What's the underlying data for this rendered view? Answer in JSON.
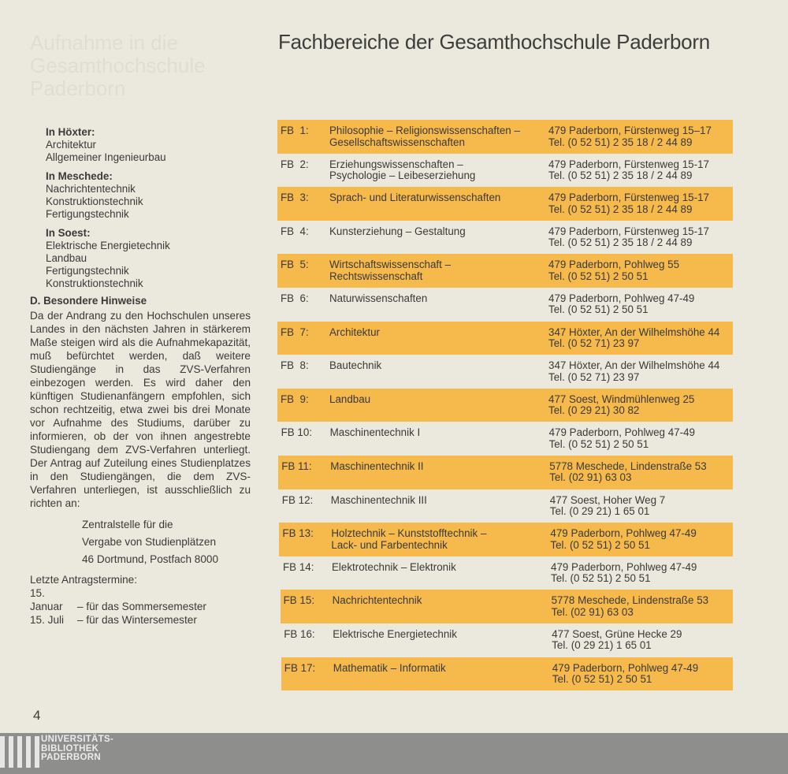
{
  "ghost_text": "Aufnahme in die Gesamthochschule Paderborn",
  "title": "Fachbereiche der Gesamthochschule Paderborn",
  "left": {
    "groups": [
      {
        "heading": "In Höxter:",
        "items": [
          "Architektur",
          "Allgemeiner Ingenieurbau"
        ]
      },
      {
        "heading": "In Meschede:",
        "items": [
          "Nachrichtentechnik",
          "Konstruktionstechnik",
          "Fertigungstechnik"
        ]
      },
      {
        "heading": "In Soest:",
        "items": [
          "Elektrische Energietechnik",
          "Landbau",
          "Fertigungstechnik",
          "Konstruktionstechnik"
        ]
      }
    ],
    "section_heading": "D. Besondere Hinweise",
    "paragraph": "Da der Andrang zu den Hochschulen unseres Landes in den nächsten Jahren in stärkerem Maße steigen wird als die Aufnahmekapazität, muß befürchtet werden, daß weitere Studiengänge in das ZVS-Verfahren einbezogen werden. Es wird daher den künftigen Studienanfängern empfohlen, sich schon rechtzeitig, etwa zwei bis drei Monate vor Aufnahme des Studiums, darüber zu informieren, ob der von ihnen angestrebte Studiengang dem ZVS-Verfahren unterliegt. Der Antrag auf Zuteilung eines Studienplatzes in den Studiengängen, die dem ZVS-Verfahren unterliegen, ist ausschließlich zu richten an:",
    "address": [
      "Zentralstelle für die",
      "Vergabe von Studienplätzen",
      "46 Dortmund, Postfach 8000"
    ],
    "deadlines_heading": "Letzte Antragstermine:",
    "deadlines": [
      {
        "date": "15. Januar",
        "text": "– für das Sommersemester"
      },
      {
        "date": "15. Juli",
        "text": "– für das Wintersemester"
      }
    ]
  },
  "highlight_color": "#f6b94b",
  "rows": [
    {
      "fb": "FB  1:",
      "name": [
        "Philosophie – Religionswissenschaften –",
        "Gesellschaftswissenschaften"
      ],
      "addr": [
        "479 Paderborn, Fürstenweg 15–17",
        "Tel. (0 52 51) 2 35 18 / 2 44 89"
      ]
    },
    {
      "fb": "FB  2:",
      "name": [
        "Erziehungswissenschaften –",
        "Psychologie – Leibeserziehung"
      ],
      "addr": [
        "479 Paderborn, Fürstenweg 15-17",
        "Tel. (0 52 51) 2 35 18 / 2 44 89"
      ]
    },
    {
      "fb": "FB  3:",
      "name": [
        "Sprach- und Literaturwissenschaften",
        ""
      ],
      "addr": [
        "479 Paderborn, Fürstenweg 15-17",
        "Tel. (0 52 51) 2 35 18 / 2 44 89"
      ]
    },
    {
      "fb": "FB  4:",
      "name": [
        "Kunsterziehung – Gestaltung",
        ""
      ],
      "addr": [
        "479 Paderborn, Fürstenweg 15-17",
        "Tel. (0 52 51) 2 35 18 / 2 44 89"
      ]
    },
    {
      "fb": "FB  5:",
      "name": [
        "Wirtschaftswissenschaft –",
        "Rechtswissenschaft"
      ],
      "addr": [
        "479 Paderborn, Pohlweg 55",
        "Tel. (0 52 51) 2 50 51"
      ]
    },
    {
      "fb": "FB  6:",
      "name": [
        "Naturwissenschaften",
        ""
      ],
      "addr": [
        "479 Paderborn, Pohlweg 47-49",
        "Tel. (0 52 51) 2 50 51"
      ]
    },
    {
      "fb": "FB  7:",
      "name": [
        "Architektur",
        ""
      ],
      "addr": [
        "347 Höxter, An der Wilhelmshöhe 44",
        "Tel. (0 52 71) 23 97"
      ]
    },
    {
      "fb": "FB  8:",
      "name": [
        "Bautechnik",
        ""
      ],
      "addr": [
        "347 Höxter, An der Wilhelmshöhe 44",
        "Tel. (0 52 71) 23 97"
      ]
    },
    {
      "fb": "FB  9:",
      "name": [
        "Landbau",
        ""
      ],
      "addr": [
        "477 Soest, Windmühlenweg 25",
        "Tel. (0 29 21) 30 82"
      ]
    },
    {
      "fb": "FB 10:",
      "name": [
        "Maschinentechnik I",
        ""
      ],
      "addr": [
        "479 Paderborn, Pohlweg 47-49",
        "Tel. (0 52 51) 2 50 51"
      ]
    },
    {
      "fb": "FB 11:",
      "name": [
        "Maschinentechnik II",
        ""
      ],
      "addr": [
        "5778 Meschede, Lindenstraße 53",
        "Tel. (02 91) 63 03"
      ]
    },
    {
      "fb": "FB 12:",
      "name": [
        "Maschinentechnik III",
        ""
      ],
      "addr": [
        "477 Soest, Hoher Weg 7",
        "Tel. (0 29 21) 1 65 01"
      ]
    },
    {
      "fb": "FB 13:",
      "name": [
        "Holztechnik – Kunststofftechnik –",
        "Lack- und Farbentechnik"
      ],
      "addr": [
        "479 Paderborn, Pohlweg 47-49",
        "Tel. (0 52 51) 2 50 51"
      ]
    },
    {
      "fb": "FB 14:",
      "name": [
        "Elektrotechnik – Elektronik",
        ""
      ],
      "addr": [
        "479 Paderborn, Pohlweg 47-49",
        "Tel. (0 52 51) 2 50 51"
      ]
    },
    {
      "fb": "FB 15:",
      "name": [
        "Nachrichtentechnik",
        ""
      ],
      "addr": [
        "5778 Meschede, Lindenstraße 53",
        "Tel. (02 91) 63 03"
      ]
    },
    {
      "fb": "FB 16:",
      "name": [
        "Elektrische Energietechnik",
        ""
      ],
      "addr": [
        "477 Soest, Grüne Hecke 29",
        "Tel. (0 29 21) 1 65 01"
      ]
    },
    {
      "fb": "FB 17:",
      "name": [
        "Mathematik – Informatik",
        ""
      ],
      "addr": [
        "479 Paderborn, Pohlweg 47-49",
        "Tel. (0 52 51) 2 50 51"
      ]
    }
  ],
  "page_number": "4",
  "footer": {
    "lines": [
      "UNIVERSITÄTS-",
      "BIBLIOTHEK",
      "PADERBORN"
    ]
  }
}
